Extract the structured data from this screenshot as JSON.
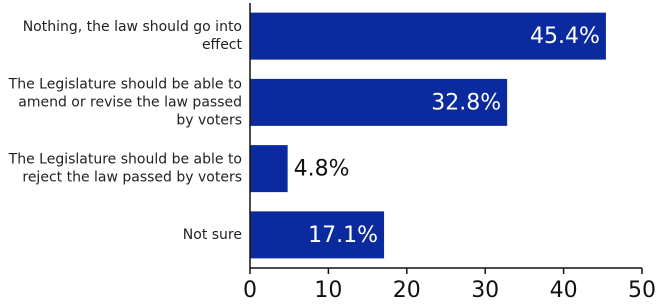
{
  "chart_data": {
    "type": "bar",
    "orientation": "horizontal",
    "categories": [
      "Nothing, the law should go into effect",
      "The Legislature should be able to amend or revise the law passed by voters",
      "The Legislature should be able to reject the law passed by voters",
      "Not sure"
    ],
    "values": [
      45.4,
      32.8,
      4.8,
      17.1
    ],
    "value_labels": [
      "45.4%",
      "32.8%",
      "4.8%",
      "17.1%"
    ],
    "color": "#0b2a9e",
    "xlim": [
      0,
      50
    ],
    "xticks": [
      0,
      10,
      20,
      30,
      40,
      50
    ]
  }
}
